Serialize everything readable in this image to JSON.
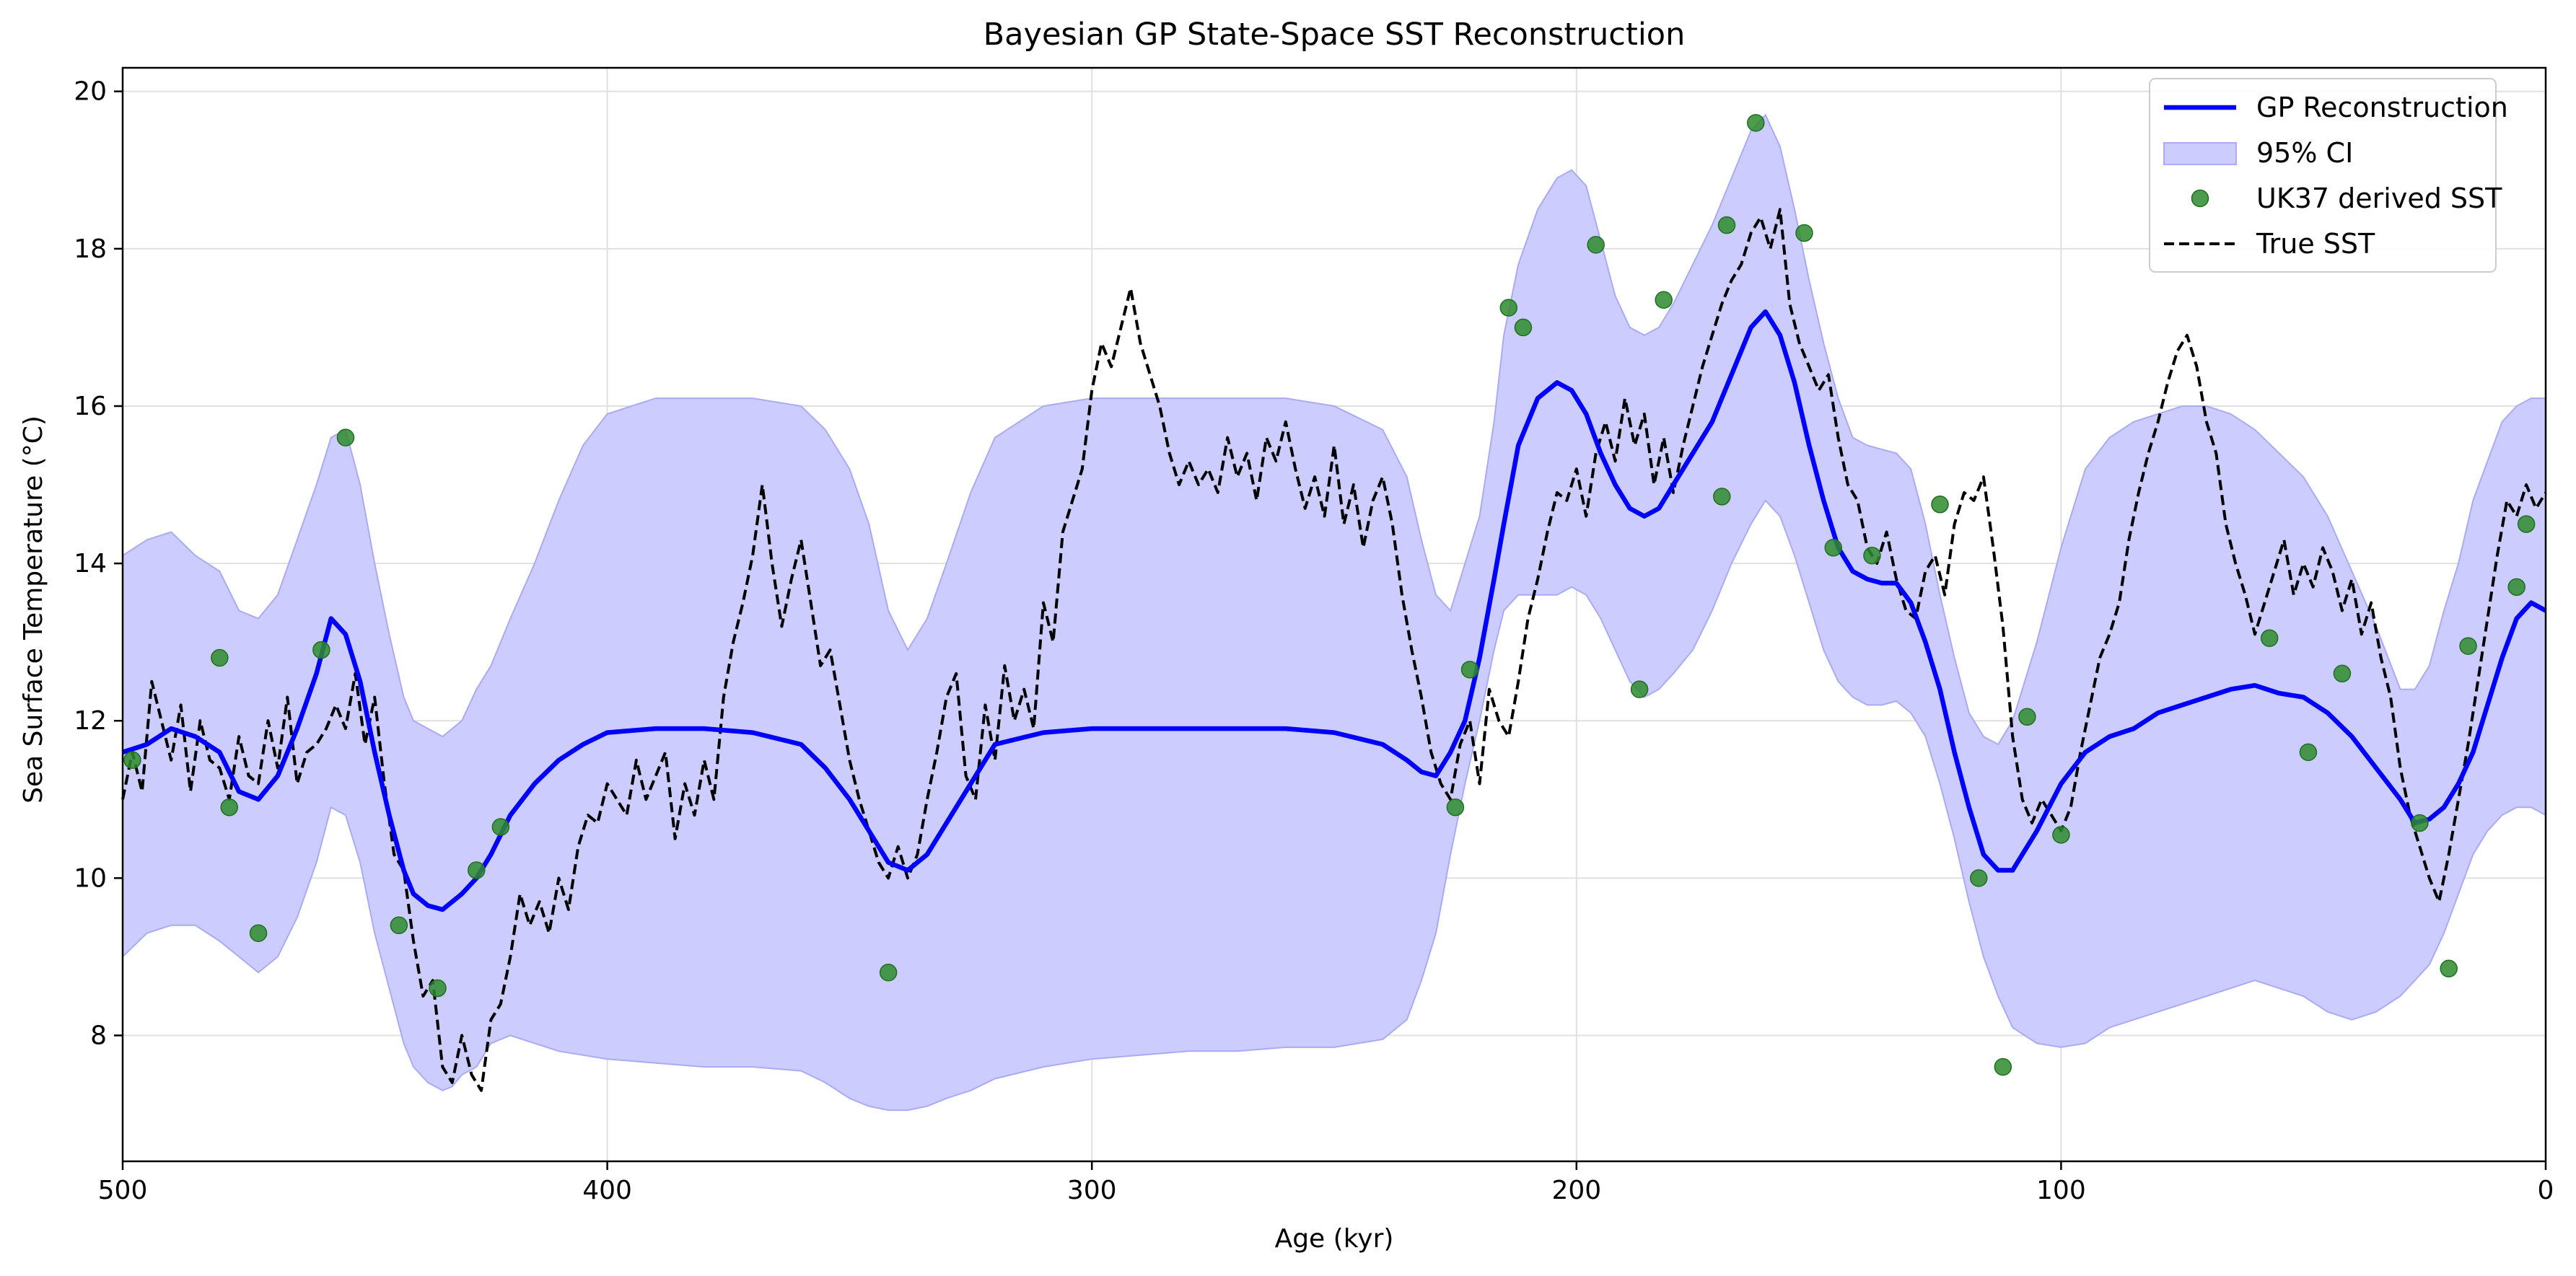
{
  "chart_data": {
    "type": "line",
    "title": "Bayesian GP State-Space SST Reconstruction",
    "xlabel": "Age (kyr)",
    "ylabel": "Sea Surface Temperature (°C)",
    "xlim": [
      500,
      0
    ],
    "ylim": [
      6.4,
      20.3
    ],
    "x_reversed": true,
    "grid": true,
    "legend_position": "upper right",
    "xticks": [
      500,
      400,
      300,
      200,
      100,
      0
    ],
    "xtick_labels": [
      "500",
      "400",
      "300",
      "200",
      "100",
      "0"
    ],
    "yticks": [
      8,
      10,
      12,
      14,
      16,
      18,
      20
    ],
    "ytick_labels": [
      "8",
      "10",
      "12",
      "14",
      "16",
      "18",
      "20"
    ],
    "colors": {
      "gp": "#0000ff",
      "ci_fill": "#ccccff",
      "ci_edge": "#aaaaf5",
      "points": "#2e8b2e",
      "true_sst": "#000000",
      "grid": "#e0e0e0"
    },
    "legend": [
      {
        "label": "GP Reconstruction",
        "kind": "line-solid",
        "color": "#0000ff"
      },
      {
        "label": "95% CI",
        "kind": "patch",
        "color": "#ccccff"
      },
      {
        "label": "UK37 derived SST",
        "kind": "marker",
        "color": "#2e8b2e"
      },
      {
        "label": "True SST",
        "kind": "line-dashed",
        "color": "#000000"
      }
    ],
    "series": [
      {
        "name": "GP Reconstruction",
        "style": "line",
        "x": [
          500,
          495,
          490,
          485,
          480,
          476,
          472,
          468,
          464,
          460,
          457,
          454,
          451,
          448,
          445,
          442,
          440,
          437,
          434,
          432,
          430,
          427,
          424,
          420,
          415,
          410,
          405,
          400,
          390,
          380,
          370,
          360,
          355,
          350,
          346,
          342,
          338,
          334,
          330,
          325,
          320,
          310,
          300,
          290,
          280,
          270,
          260,
          250,
          240,
          235,
          232,
          229,
          226,
          223,
          220,
          217,
          215,
          212,
          208,
          204,
          201,
          198,
          195,
          192,
          189,
          186,
          183,
          180,
          176,
          172,
          168,
          164,
          161,
          158,
          155,
          152,
          149,
          146,
          143,
          140,
          137,
          134,
          131,
          128,
          125,
          122,
          119,
          116,
          113,
          110,
          105,
          100,
          95,
          90,
          85,
          80,
          75,
          70,
          65,
          60,
          55,
          50,
          45,
          40,
          35,
          30,
          27,
          24,
          21,
          18,
          15,
          12,
          9,
          6,
          3,
          0
        ],
        "y": [
          11.6,
          11.7,
          11.9,
          11.8,
          11.6,
          11.1,
          11.0,
          11.3,
          11.9,
          12.6,
          13.3,
          13.1,
          12.5,
          11.6,
          10.8,
          10.1,
          9.8,
          9.65,
          9.6,
          9.7,
          9.8,
          10.0,
          10.3,
          10.8,
          11.2,
          11.5,
          11.7,
          11.85,
          11.9,
          11.9,
          11.85,
          11.7,
          11.4,
          11.0,
          10.6,
          10.2,
          10.1,
          10.3,
          10.7,
          11.2,
          11.7,
          11.85,
          11.9,
          11.9,
          11.9,
          11.9,
          11.9,
          11.85,
          11.7,
          11.5,
          11.35,
          11.3,
          11.6,
          12.0,
          12.8,
          13.8,
          14.5,
          15.5,
          16.1,
          16.3,
          16.2,
          15.9,
          15.4,
          15.0,
          14.7,
          14.6,
          14.7,
          15.0,
          15.4,
          15.8,
          16.4,
          17.0,
          17.2,
          16.9,
          16.3,
          15.5,
          14.8,
          14.2,
          13.9,
          13.8,
          13.75,
          13.75,
          13.5,
          13.0,
          12.4,
          11.6,
          10.9,
          10.3,
          10.1,
          10.1,
          10.6,
          11.2,
          11.6,
          11.8,
          11.9,
          12.1,
          12.2,
          12.3,
          12.4,
          12.45,
          12.35,
          12.3,
          12.1,
          11.8,
          11.4,
          11.0,
          10.7,
          10.75,
          10.9,
          11.2,
          11.6,
          12.2,
          12.8,
          13.3,
          13.5,
          13.4
        ]
      },
      {
        "name": "95% CI",
        "style": "band",
        "x": [
          500,
          495,
          490,
          485,
          480,
          476,
          472,
          468,
          464,
          460,
          457,
          454,
          451,
          448,
          445,
          442,
          440,
          437,
          434,
          432,
          430,
          427,
          424,
          420,
          415,
          410,
          405,
          400,
          390,
          380,
          370,
          360,
          355,
          350,
          346,
          342,
          338,
          334,
          330,
          325,
          320,
          310,
          300,
          290,
          280,
          270,
          260,
          250,
          240,
          235,
          232,
          229,
          226,
          223,
          220,
          217,
          215,
          212,
          208,
          204,
          201,
          198,
          195,
          192,
          189,
          186,
          183,
          180,
          176,
          172,
          168,
          164,
          161,
          158,
          155,
          152,
          149,
          146,
          143,
          140,
          137,
          134,
          131,
          128,
          125,
          122,
          119,
          116,
          113,
          110,
          105,
          100,
          95,
          90,
          85,
          80,
          75,
          70,
          65,
          60,
          55,
          50,
          45,
          40,
          35,
          30,
          27,
          24,
          21,
          18,
          15,
          12,
          9,
          6,
          3,
          0
        ],
        "lower": [
          9.0,
          9.3,
          9.4,
          9.4,
          9.2,
          9.0,
          8.8,
          9.0,
          9.5,
          10.2,
          10.9,
          10.8,
          10.2,
          9.3,
          8.6,
          7.9,
          7.6,
          7.4,
          7.3,
          7.35,
          7.5,
          7.6,
          7.9,
          8.0,
          7.9,
          7.8,
          7.75,
          7.7,
          7.65,
          7.6,
          7.6,
          7.55,
          7.4,
          7.2,
          7.1,
          7.05,
          7.05,
          7.1,
          7.2,
          7.3,
          7.45,
          7.6,
          7.7,
          7.75,
          7.8,
          7.8,
          7.85,
          7.85,
          7.95,
          8.2,
          8.7,
          9.3,
          10.3,
          11.2,
          12.0,
          12.9,
          13.4,
          13.6,
          13.6,
          13.6,
          13.7,
          13.6,
          13.3,
          12.9,
          12.5,
          12.3,
          12.4,
          12.6,
          12.9,
          13.4,
          14.0,
          14.5,
          14.8,
          14.6,
          14.1,
          13.5,
          12.9,
          12.5,
          12.3,
          12.2,
          12.2,
          12.25,
          12.1,
          11.8,
          11.2,
          10.5,
          9.7,
          9.0,
          8.5,
          8.1,
          7.9,
          7.85,
          7.9,
          8.1,
          8.2,
          8.3,
          8.4,
          8.5,
          8.6,
          8.7,
          8.6,
          8.5,
          8.3,
          8.2,
          8.3,
          8.5,
          8.7,
          8.9,
          9.3,
          9.8,
          10.3,
          10.6,
          10.8,
          10.9,
          10.9,
          10.8
        ],
        "upper": [
          14.1,
          14.3,
          14.4,
          14.1,
          13.9,
          13.4,
          13.3,
          13.6,
          14.3,
          15.0,
          15.6,
          15.7,
          15.0,
          14.0,
          13.1,
          12.3,
          12.0,
          11.9,
          11.8,
          11.9,
          12.0,
          12.4,
          12.7,
          13.3,
          14.0,
          14.8,
          15.5,
          15.9,
          16.1,
          16.1,
          16.1,
          16.0,
          15.7,
          15.2,
          14.5,
          13.4,
          12.9,
          13.3,
          14.0,
          14.9,
          15.6,
          16.0,
          16.1,
          16.1,
          16.1,
          16.1,
          16.1,
          16.0,
          15.7,
          15.1,
          14.3,
          13.6,
          13.4,
          14.0,
          14.6,
          15.8,
          16.9,
          17.8,
          18.5,
          18.9,
          19.0,
          18.8,
          18.1,
          17.4,
          17.0,
          16.9,
          17.0,
          17.3,
          17.8,
          18.3,
          18.9,
          19.5,
          19.7,
          19.3,
          18.5,
          17.6,
          16.8,
          16.1,
          15.6,
          15.5,
          15.45,
          15.4,
          15.2,
          14.5,
          13.6,
          12.8,
          12.1,
          11.8,
          11.7,
          12.0,
          13.0,
          14.2,
          15.2,
          15.6,
          15.8,
          15.9,
          16.0,
          16.0,
          15.9,
          15.7,
          15.4,
          15.1,
          14.6,
          13.9,
          13.2,
          12.4,
          12.4,
          12.7,
          13.4,
          14.0,
          14.8,
          15.3,
          15.8,
          16.0,
          16.1,
          16.1
        ]
      },
      {
        "name": "True SST",
        "style": "dashed",
        "x": [
          500,
          498,
          496,
          494,
          492,
          490,
          488,
          486,
          484,
          482,
          480,
          478,
          476,
          474,
          472,
          470,
          468,
          466,
          464,
          462,
          460,
          458,
          456,
          454,
          452,
          450,
          448,
          446,
          444,
          442,
          440,
          438,
          436,
          434,
          432,
          430,
          428,
          426,
          424,
          422,
          420,
          418,
          416,
          414,
          412,
          410,
          408,
          406,
          404,
          402,
          400,
          398,
          396,
          394,
          392,
          390,
          388,
          386,
          384,
          382,
          380,
          378,
          376,
          374,
          372,
          370,
          368,
          366,
          364,
          362,
          360,
          358,
          356,
          354,
          352,
          350,
          348,
          346,
          344,
          342,
          340,
          338,
          336,
          334,
          332,
          330,
          328,
          326,
          324,
          322,
          320,
          318,
          316,
          314,
          312,
          310,
          308,
          306,
          304,
          302,
          300,
          298,
          296,
          294,
          292,
          290,
          288,
          286,
          284,
          282,
          280,
          278,
          276,
          274,
          272,
          270,
          268,
          266,
          264,
          262,
          260,
          258,
          256,
          254,
          252,
          250,
          248,
          246,
          244,
          242,
          240,
          238,
          236,
          234,
          232,
          230,
          228,
          226,
          224,
          222,
          220,
          218,
          216,
          214,
          212,
          210,
          208,
          206,
          204,
          202,
          200,
          198,
          196,
          194,
          192,
          190,
          188,
          186,
          184,
          182,
          180,
          178,
          176,
          174,
          172,
          170,
          168,
          166,
          164,
          162,
          160,
          158,
          156,
          154,
          152,
          150,
          148,
          146,
          144,
          142,
          140,
          138,
          136,
          134,
          132,
          130,
          128,
          126,
          124,
          122,
          120,
          118,
          116,
          114,
          112,
          110,
          108,
          106,
          104,
          102,
          100,
          98,
          96,
          94,
          92,
          90,
          88,
          86,
          84,
          82,
          80,
          78,
          76,
          74,
          72,
          70,
          68,
          66,
          64,
          62,
          60,
          58,
          56,
          54,
          52,
          50,
          48,
          46,
          44,
          42,
          40,
          38,
          36,
          34,
          32,
          30,
          28,
          26,
          24,
          22,
          20,
          18,
          16,
          14,
          12,
          10,
          8,
          6,
          4,
          2,
          0
        ],
        "y": [
          11.0,
          11.6,
          11.1,
          12.5,
          12.0,
          11.5,
          12.2,
          11.1,
          12.0,
          11.5,
          11.4,
          11.0,
          11.8,
          11.3,
          11.2,
          12.0,
          11.4,
          12.3,
          11.2,
          11.6,
          11.7,
          11.9,
          12.2,
          11.9,
          12.6,
          11.7,
          12.3,
          11.2,
          10.3,
          10.1,
          9.2,
          8.5,
          8.7,
          7.6,
          7.4,
          8.0,
          7.5,
          7.3,
          8.2,
          8.4,
          9.0,
          9.8,
          9.4,
          9.7,
          9.3,
          10.0,
          9.6,
          10.4,
          10.8,
          10.7,
          11.2,
          11.0,
          10.8,
          11.5,
          11.0,
          11.3,
          11.6,
          10.5,
          11.2,
          10.8,
          11.5,
          11.0,
          12.3,
          13.0,
          13.5,
          14.1,
          15.0,
          14.0,
          13.2,
          13.8,
          14.3,
          13.5,
          12.7,
          12.9,
          12.2,
          11.5,
          11.0,
          10.6,
          10.2,
          10.0,
          10.4,
          10.0,
          10.3,
          11.0,
          11.6,
          12.3,
          12.6,
          11.3,
          11.0,
          12.2,
          11.5,
          12.7,
          12.0,
          12.4,
          11.9,
          13.5,
          13.0,
          14.4,
          14.8,
          15.2,
          16.2,
          16.8,
          16.5,
          17.0,
          17.5,
          16.8,
          16.4,
          16.0,
          15.4,
          15.0,
          15.3,
          15.0,
          15.2,
          14.9,
          15.6,
          15.1,
          15.4,
          14.8,
          15.6,
          15.3,
          15.8,
          15.2,
          14.7,
          15.1,
          14.6,
          15.5,
          14.5,
          15.0,
          14.2,
          14.8,
          15.1,
          14.5,
          13.6,
          12.9,
          12.3,
          11.6,
          11.2,
          11.0,
          11.7,
          12.0,
          11.2,
          12.4,
          12.0,
          11.8,
          12.5,
          13.3,
          13.8,
          14.4,
          14.9,
          14.8,
          15.2,
          14.6,
          15.4,
          15.8,
          15.3,
          16.1,
          15.5,
          15.9,
          15.0,
          15.6,
          14.9,
          15.5,
          16.0,
          16.5,
          16.9,
          17.3,
          17.6,
          17.8,
          18.2,
          18.4,
          18.0,
          18.5,
          17.3,
          16.8,
          16.5,
          16.2,
          16.4,
          15.6,
          15.0,
          14.8,
          14.2,
          14.0,
          14.4,
          13.8,
          13.4,
          13.3,
          13.9,
          14.1,
          13.6,
          14.5,
          14.9,
          14.8,
          15.1,
          14.2,
          13.2,
          11.8,
          11.0,
          10.7,
          11.0,
          10.8,
          10.6,
          10.9,
          11.6,
          12.2,
          12.8,
          13.1,
          13.5,
          14.3,
          14.9,
          15.4,
          15.8,
          16.3,
          16.7,
          16.9,
          16.5,
          15.8,
          15.4,
          14.5,
          14.0,
          13.6,
          13.1,
          13.5,
          13.9,
          14.3,
          13.6,
          14.0,
          13.7,
          14.2,
          13.9,
          13.4,
          13.8,
          13.1,
          13.5,
          12.8,
          12.3,
          11.4,
          10.8,
          10.4,
          10.0,
          9.7,
          10.3,
          11.0,
          11.7,
          12.5,
          13.3,
          14.1,
          14.8,
          14.6,
          15.0,
          14.7,
          14.9
        ]
      },
      {
        "name": "UK37 derived SST",
        "style": "scatter",
        "x": [
          498,
          480,
          478,
          472,
          459,
          454,
          443,
          435,
          427,
          422,
          342,
          225,
          222,
          214,
          211,
          196,
          187,
          182,
          170,
          169,
          163,
          153,
          147,
          139,
          125,
          117,
          112,
          107,
          100,
          57,
          49,
          42,
          26,
          20,
          16,
          6,
          4
        ],
        "y": [
          11.5,
          12.8,
          10.9,
          9.3,
          12.9,
          15.6,
          9.4,
          8.6,
          10.1,
          10.65,
          8.8,
          10.9,
          12.65,
          17.25,
          17.0,
          18.05,
          12.4,
          17.35,
          14.85,
          18.3,
          19.6,
          18.2,
          14.2,
          14.1,
          14.75,
          10.0,
          7.6,
          12.05,
          10.55,
          13.05,
          11.6,
          12.6,
          10.7,
          8.85,
          12.95,
          13.7,
          14.5
        ]
      }
    ]
  }
}
